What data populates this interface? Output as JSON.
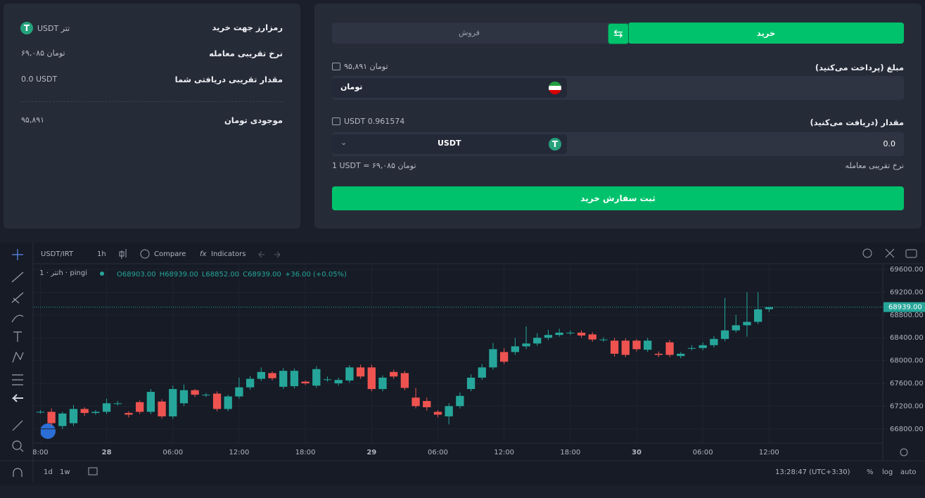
{
  "sidebar": {
    "rows": [
      {
        "label": "رمزارز جهت خرید",
        "value": "تتر USDT"
      },
      {
        "label": "نرخ تقریبی معامله",
        "value": "تومان ۶۹,۰۸۵"
      },
      {
        "label": "مقدار تقریبی دریافتی شما",
        "value": "0.0 USDT"
      }
    ],
    "balance": {
      "label": "موجودی تومان",
      "value": "۹۵,۸۹۱"
    }
  },
  "trade_form": {
    "tabs": [
      "خرید",
      "فروش"
    ],
    "pay_label": "مبلغ (پرداخت می‌کنید)",
    "pay_balance": "تومان ۹۵,۸۹۱",
    "pay_currency": "تومان",
    "receive_label": "مقدار (دریافت می‌کنید)",
    "receive_balance": "USDT 0.961574",
    "receive_amount": "0.0",
    "receive_currency": "USDT",
    "rate_label": "نرخ تقریبی معامله",
    "rate_value": "1 USDT = ۶۹,۰۸۵ تومان",
    "submit": "ثبت سفارش خرید"
  },
  "chart_toolbar": {
    "symbol": "USDT/IRT",
    "interval": "1h",
    "compare": "Compare",
    "indicators": "Indicators"
  },
  "chart_footer": {
    "ranges": [
      "1d",
      "1w"
    ],
    "clock": "13:28:47 (UTC+3:30)",
    "options": [
      "%",
      "log",
      "auto"
    ]
  },
  "chart_data": {
    "type": "candlestick",
    "legend_symbol": "تتر · 1h · pingi",
    "ohlc_legend": [
      "O68903.00",
      "H68939.00",
      "L68852.00",
      "C68939.00",
      "+36.00 (+0.05%)"
    ],
    "up_color": "#26a69a",
    "down_color": "#ef5350",
    "open": [
      67100,
      67100,
      66850,
      66900,
      67150,
      67080,
      67100,
      67250,
      67080,
      67270,
      67100,
      67280,
      67020,
      67250,
      67480,
      67400,
      67420,
      67150,
      67370,
      67530,
      67680,
      67780,
      67540,
      67550,
      67630,
      67560,
      67670,
      67600,
      67650,
      67880,
      67880,
      67500,
      67800,
      67780,
      67350,
      67290,
      67100,
      67020,
      67200,
      67500,
      67700,
      67880,
      68150,
      68150,
      68250,
      68300,
      68400,
      68450,
      68490,
      68490,
      68460,
      68370,
      68350,
      68350,
      68350,
      68190,
      68120,
      68320,
      68080,
      68220,
      68220,
      68270,
      68380,
      68530,
      68620,
      68680,
      68903
    ],
    "high": [
      67130,
      67160,
      67100,
      67220,
      67180,
      67130,
      67330,
      67290,
      67110,
      67300,
      67500,
      67320,
      67560,
      67580,
      67500,
      67430,
      67460,
      67400,
      67700,
      67730,
      67880,
      67810,
      67870,
      67860,
      67650,
      67900,
      67720,
      67700,
      67920,
      67930,
      67930,
      67740,
      67840,
      67820,
      67520,
      67350,
      67130,
      67250,
      67440,
      67760,
      67940,
      68310,
      68220,
      68400,
      68600,
      68480,
      68540,
      68560,
      68530,
      68530,
      68500,
      68410,
      68400,
      68390,
      68380,
      68400,
      68160,
      68360,
      68150,
      68270,
      68320,
      68430,
      69100,
      68800,
      69200,
      69200,
      68939
    ],
    "low": [
      67070,
      66850,
      66800,
      66850,
      67030,
      67050,
      67060,
      67210,
      67000,
      67060,
      67060,
      66980,
      66980,
      67200,
      67360,
      67360,
      67110,
      67110,
      67330,
      67490,
      67640,
      67650,
      67500,
      67510,
      67570,
      67520,
      67630,
      67560,
      67610,
      67680,
      67460,
      67460,
      67680,
      67480,
      67160,
      67120,
      67000,
      66880,
      67160,
      67460,
      67660,
      67840,
      67940,
      68100,
      68200,
      68260,
      68360,
      68420,
      68450,
      68400,
      68330,
      68330,
      68070,
      68060,
      68160,
      68150,
      68060,
      68060,
      68040,
      68180,
      68180,
      68230,
      68340,
      68490,
      68420,
      68640,
      68852
    ],
    "close": [
      67100,
      66900,
      67070,
      67150,
      67080,
      67100,
      67250,
      67250,
      67050,
      67100,
      67450,
      67020,
      67500,
      67480,
      67400,
      67400,
      67150,
      67370,
      67530,
      67680,
      67800,
      67690,
      67820,
      67820,
      67600,
      67850,
      67670,
      67660,
      67880,
      67720,
      67500,
      67700,
      67720,
      67520,
      67200,
      67180,
      67050,
      67200,
      67380,
      67700,
      67880,
      68200,
      67980,
      68250,
      68300,
      68400,
      68450,
      68490,
      68490,
      68440,
      68370,
      68370,
      68120,
      68100,
      68200,
      68350,
      68100,
      68100,
      68120,
      68220,
      68270,
      68380,
      68530,
      68620,
      68680,
      68900,
      68939
    ],
    "xlim": [
      -0.6,
      76.3
    ],
    "xticks": [
      {
        "value": 0,
        "label": "8:00"
      },
      {
        "value": 6,
        "label": "28"
      },
      {
        "value": 12,
        "label": "06:00"
      },
      {
        "value": 18,
        "label": "12:00"
      },
      {
        "value": 24,
        "label": "18:00"
      },
      {
        "value": 30,
        "label": "29"
      },
      {
        "value": 36,
        "label": "06:00"
      },
      {
        "value": 42,
        "label": "12:00"
      },
      {
        "value": 48,
        "label": "18:00"
      },
      {
        "value": 54,
        "label": "30"
      },
      {
        "value": 60,
        "label": "06:00"
      },
      {
        "value": 66,
        "label": "12:00"
      }
    ],
    "ylim": [
      66550,
      69700
    ],
    "yticks": [
      {
        "value": 66800,
        "label": "66800.00"
      },
      {
        "value": 67200,
        "label": "67200.00"
      },
      {
        "value": 67600,
        "label": "67600.00"
      },
      {
        "value": 68000,
        "label": "68000.00"
      },
      {
        "value": 68400,
        "label": "68400.00"
      },
      {
        "value": 68800,
        "label": "68800.00"
      },
      {
        "value": 69200,
        "label": "69200.00"
      },
      {
        "value": 69600,
        "label": "69600.00"
      }
    ],
    "grid": true,
    "price_line": {
      "value": 68939,
      "label": "68939.00"
    }
  }
}
